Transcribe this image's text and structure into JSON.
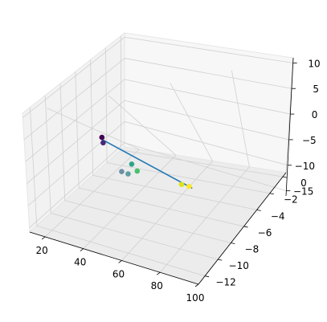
{
  "chart_data": {
    "type": "scatter",
    "projection": "3d",
    "grid": true,
    "title": "",
    "xlabel": "",
    "ylabel": "",
    "zlabel": "",
    "xlim": [
      12,
      100
    ],
    "ylim": [
      -13,
      0.5
    ],
    "zlim": [
      -16,
      11
    ],
    "x_ticks": [
      "20",
      "40",
      "60",
      "80",
      "100"
    ],
    "y_ticks": [
      "−12",
      "−10",
      "−8",
      "−6",
      "−4",
      "−2",
      "0"
    ],
    "z_ticks": [
      "−15",
      "−10",
      "−5",
      "0",
      "5",
      "10"
    ],
    "colormap": "viridis",
    "series": [
      {
        "kind": "scatter",
        "points": [
          {
            "x": 15,
            "y": -12.5,
            "z": -15,
            "color": "#440154"
          },
          {
            "x": 17,
            "y": -12.0,
            "z": -15,
            "color": "#482878"
          },
          {
            "x": 45,
            "y": -5.5,
            "z": -5,
            "color": "#6f8fa3"
          },
          {
            "x": 48,
            "y": -5.5,
            "z": -5,
            "color": "#5c9fa0"
          },
          {
            "x": 53,
            "y": -4.5,
            "z": 0,
            "color": "#2ea58a"
          },
          {
            "x": 57,
            "y": -4.0,
            "z": 0,
            "color": "#4ac16d"
          },
          {
            "x": 90,
            "y": 0,
            "z": 10,
            "color": "#dde318"
          },
          {
            "x": 92,
            "y": -0.5,
            "z": 9,
            "color": "#fde725"
          }
        ]
      },
      {
        "kind": "line",
        "color": "#1f77b4",
        "points": [
          {
            "x": 15,
            "y": -12.5,
            "z": -15.5
          },
          {
            "x": 95,
            "y": 0,
            "z": 10
          }
        ]
      }
    ]
  }
}
